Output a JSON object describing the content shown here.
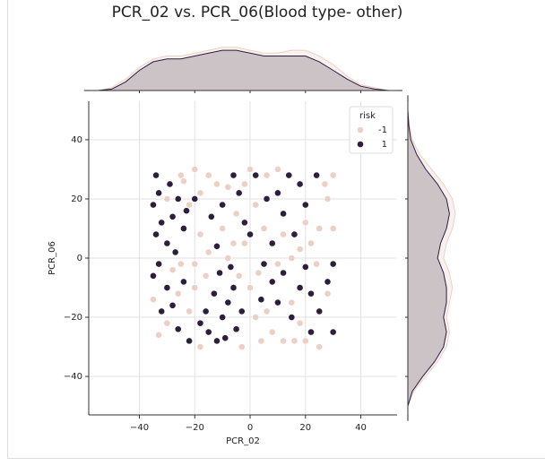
{
  "chart_data": {
    "type": "scatter",
    "title": "PCR_02 vs. PCR_06(Blood type- other)",
    "x_label": "PCR_02",
    "y_label": "PCR_06",
    "legend_title": "risk",
    "legend_loc": "upper right",
    "grid": true,
    "xlim": [
      -58.3,
      53.1
    ],
    "ylim": [
      -53,
      53
    ],
    "xticks": [
      {
        "value": -40,
        "label": "−40"
      },
      {
        "value": -20,
        "label": "−20"
      },
      0,
      20,
      40
    ],
    "yticks": [
      {
        "value": -40,
        "label": "−40"
      },
      {
        "value": -20,
        "label": "−20"
      },
      0,
      20,
      40
    ],
    "series": [
      {
        "name": "-1",
        "color": "#ecd0c6",
        "x": [
          -25,
          -20,
          -15,
          -12,
          -8,
          -18,
          -22,
          -10,
          -5,
          -2,
          -15,
          -20,
          -18,
          -8,
          -4,
          0,
          2,
          4,
          8,
          12,
          15,
          18,
          20,
          25,
          28,
          30,
          28,
          25,
          22,
          20,
          15,
          10,
          5,
          2,
          -2,
          0,
          6,
          10,
          -30,
          -33,
          -28,
          -35,
          -26,
          -22,
          -20,
          -18,
          -25,
          -30,
          -3,
          3,
          12,
          18,
          24,
          30,
          27,
          -16,
          -6,
          6,
          16,
          -24
        ],
        "y": [
          28,
          30,
          28,
          25,
          24,
          22,
          18,
          10,
          15,
          5,
          2,
          -2,
          8,
          0,
          -6,
          -10,
          -20,
          -28,
          -25,
          -28,
          -15,
          -22,
          -28,
          -30,
          -12,
          10,
          20,
          10,
          5,
          12,
          0,
          -2,
          10,
          18,
          25,
          30,
          28,
          30,
          -22,
          -26,
          -4,
          -14,
          -12,
          -18,
          -10,
          -30,
          -2,
          20,
          -30,
          -5,
          8,
          3,
          -2,
          28,
          25,
          -6,
          5,
          -18,
          -28,
          26
        ]
      },
      {
        "name": "1",
        "color": "#2d1e3e",
        "x": [
          -34,
          -33,
          -35,
          -32,
          -34,
          -30,
          -28,
          -26,
          -24,
          -27,
          -33,
          -35,
          -30,
          -28,
          -32,
          -26,
          -22,
          -24,
          -29,
          -23,
          -18,
          -15,
          -12,
          -10,
          -8,
          -6,
          -13,
          -16,
          -9,
          -5,
          -3,
          -11,
          -7,
          -14,
          -10,
          -4,
          -2,
          0,
          -6,
          2,
          5,
          8,
          10,
          12,
          15,
          18,
          20,
          22,
          25,
          28,
          30,
          16,
          12,
          10,
          14,
          18,
          20,
          24,
          8,
          6,
          22,
          30,
          4,
          -20,
          -12
        ],
        "y": [
          28,
          22,
          18,
          12,
          8,
          5,
          14,
          20,
          10,
          2,
          -2,
          -6,
          -10,
          -16,
          -18,
          -24,
          -28,
          -8,
          25,
          16,
          -22,
          -25,
          -28,
          -20,
          -15,
          -10,
          -12,
          -18,
          -27,
          -24,
          -18,
          -5,
          -3,
          14,
          18,
          22,
          12,
          8,
          28,
          28,
          -2,
          -8,
          -15,
          -5,
          -20,
          -10,
          -3,
          -12,
          -18,
          -8,
          -2,
          8,
          15,
          22,
          28,
          25,
          18,
          28,
          5,
          20,
          -25,
          -25,
          -14,
          20,
          4
        ]
      }
    ],
    "marginal_x": {
      "ylim": [
        0,
        0.019
      ],
      "x": [
        -60,
        -55,
        -50,
        -45,
        -40,
        -35,
        -30,
        -25,
        -20,
        -15,
        -10,
        -5,
        0,
        5,
        10,
        15,
        20,
        25,
        30,
        35,
        40,
        45,
        50,
        55
      ],
      "series": [
        {
          "color": "#ecd0c6",
          "values": [
            0,
            0,
            0.001,
            0.004,
            0.008,
            0.011,
            0.012,
            0.012,
            0.013,
            0.014,
            0.015,
            0.015,
            0.014,
            0.013,
            0.013,
            0.014,
            0.014,
            0.012,
            0.009,
            0.005,
            0.002,
            0.001,
            0,
            0
          ]
        },
        {
          "color": "#2d1e3e",
          "values": [
            0,
            0,
            0.0005,
            0.003,
            0.007,
            0.01,
            0.011,
            0.011,
            0.012,
            0.013,
            0.014,
            0.014,
            0.013,
            0.012,
            0.012,
            0.012,
            0.012,
            0.01,
            0.007,
            0.004,
            0.0015,
            0.0005,
            0,
            0
          ]
        }
      ]
    },
    "marginal_y": {
      "xlim": [
        0,
        0.019
      ],
      "y": [
        -55,
        -50,
        -45,
        -40,
        -35,
        -30,
        -25,
        -20,
        -15,
        -10,
        -5,
        0,
        5,
        10,
        15,
        20,
        25,
        30,
        35,
        40,
        45,
        50,
        55
      ],
      "series": [
        {
          "color": "#ecd0c6",
          "values": [
            0,
            0,
            0.002,
            0.006,
            0.01,
            0.013,
            0.014,
            0.013,
            0.014,
            0.015,
            0.014,
            0.012,
            0.013,
            0.015,
            0.016,
            0.015,
            0.012,
            0.008,
            0.004,
            0.0015,
            0.0005,
            0,
            0
          ]
        },
        {
          "color": "#2d1e3e",
          "values": [
            0,
            0,
            0.0015,
            0.005,
            0.009,
            0.012,
            0.013,
            0.012,
            0.013,
            0.013,
            0.012,
            0.01,
            0.011,
            0.013,
            0.014,
            0.013,
            0.01,
            0.006,
            0.003,
            0.001,
            0.0003,
            0,
            0
          ]
        }
      ]
    }
  }
}
